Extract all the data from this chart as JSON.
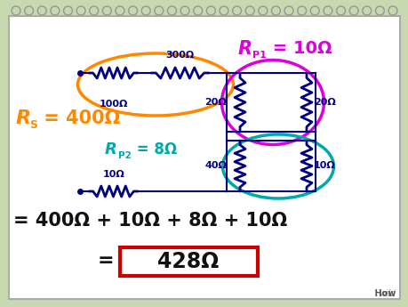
{
  "bg_outer": "#c8d8b0",
  "bg_inner": "#ffffff",
  "spiral_color": "#888888",
  "navy": "#000080",
  "orange": "#ff8800",
  "magenta": "#dd00dd",
  "teal": "#00aaaa",
  "red": "#cc0000",
  "black": "#111111",
  "label_100": "100Ω",
  "label_300": "300Ω",
  "label_20a": "20Ω",
  "label_20b": "20Ω",
  "label_40": "40Ω",
  "label_10a": "10Ω",
  "label_10b": "10Ω",
  "Rs_R": "R",
  "Rs_sub": "S",
  "Rs_val": " = 400Ω",
  "Rp1_R": "R",
  "Rp1_sub": "P1",
  "Rp1_val": " = 10Ω",
  "Rp2_R": "R",
  "Rp2_sub": "P2",
  "Rp2_val": " = 8Ω",
  "eq1": "= 400Ω + 10Ω + 8Ω + 10Ω",
  "eq2": "= 428Ω"
}
